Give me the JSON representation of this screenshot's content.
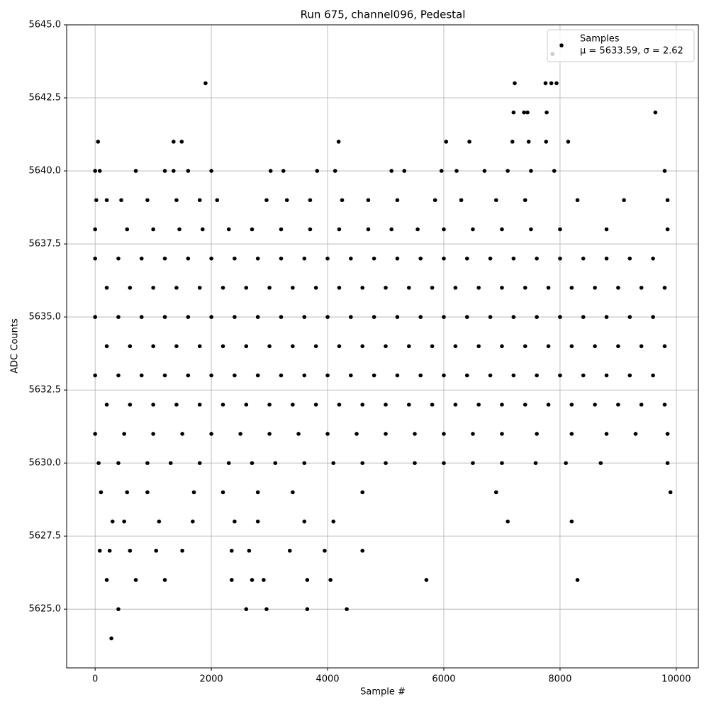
{
  "chart_data": {
    "type": "scatter",
    "title": "Run 675, channel096, Pedestal",
    "x_label": "Sample #",
    "y_label": "ADC Counts",
    "xlim": [
      -490,
      10380
    ],
    "ylim": [
      5622.99,
      5645
    ],
    "xticks": [
      0,
      2000,
      4000,
      6000,
      8000,
      10000
    ],
    "yticks": [
      {
        "value": 5625,
        "label": "5625.0"
      },
      {
        "value": 5627.5,
        "label": "5627.5"
      },
      {
        "value": 5630,
        "label": "5630.0"
      },
      {
        "value": 5632.5,
        "label": "5632.5"
      },
      {
        "value": 5635,
        "label": "5635.0"
      },
      {
        "value": 5637.5,
        "label": "5637.5"
      },
      {
        "value": 5640,
        "label": "5640.0"
      },
      {
        "value": 5642.5,
        "label": "5642.5"
      },
      {
        "value": 5645,
        "label": "5645.0"
      }
    ],
    "grid": true,
    "legend": "upper right",
    "legend_note": "μ = 5633.59, σ = 2.62",
    "x": [
      7870,
      1900,
      7220,
      7750,
      7850,
      7940,
      7200,
      7380,
      7440,
      7770,
      9640,
      50,
      1350,
      1490,
      4190,
      6040,
      6440,
      7180,
      7460,
      7760,
      8140,
      0,
      80,
      700,
      1200,
      1350,
      1600,
      2000,
      3020,
      3240,
      3820,
      4130,
      5100,
      5320,
      5960,
      6220,
      6700,
      7100,
      7500,
      7900,
      9800,
      20,
      200,
      450,
      900,
      1400,
      1800,
      2100,
      2950,
      3300,
      3700,
      4250,
      4700,
      5200,
      5850,
      6300,
      6900,
      7400,
      8300,
      9100,
      9850,
      0,
      550,
      1000,
      1450,
      1850,
      2300,
      2700,
      3200,
      3700,
      4200,
      4700,
      5100,
      5550,
      6000,
      6500,
      7000,
      7500,
      8000,
      8800,
      9850,
      0,
      400,
      800,
      1200,
      1600,
      2000,
      2400,
      2800,
      3200,
      3600,
      4000,
      4400,
      4800,
      5200,
      5600,
      6000,
      6400,
      6800,
      7200,
      7600,
      8000,
      8400,
      8800,
      9200,
      9600,
      200,
      600,
      1000,
      1400,
      1800,
      2200,
      2600,
      3000,
      3400,
      3800,
      4200,
      4600,
      5000,
      5400,
      5800,
      6200,
      6600,
      7000,
      7400,
      7800,
      8200,
      8600,
      9000,
      9400,
      9800,
      0,
      400,
      800,
      1200,
      1600,
      2000,
      2400,
      2800,
      3200,
      3600,
      4000,
      4400,
      4800,
      5200,
      5600,
      6000,
      6400,
      6800,
      7200,
      7600,
      8000,
      8400,
      8800,
      9200,
      9600,
      200,
      600,
      1000,
      1400,
      1800,
      2200,
      2600,
      3000,
      3400,
      3800,
      4200,
      4600,
      5000,
      5400,
      5800,
      6200,
      6600,
      7000,
      7400,
      7800,
      8200,
      8600,
      9000,
      9400,
      9800,
      0,
      400,
      800,
      1200,
      1600,
      2000,
      2400,
      2800,
      3200,
      3600,
      4000,
      4400,
      4800,
      5200,
      5600,
      6000,
      6400,
      6800,
      7200,
      7600,
      8000,
      8400,
      8800,
      9200,
      9600,
      200,
      600,
      1000,
      1400,
      1800,
      2200,
      2600,
      3000,
      3400,
      3800,
      4200,
      4600,
      5000,
      5400,
      5800,
      6200,
      6600,
      7000,
      7400,
      7800,
      8200,
      8600,
      9000,
      9400,
      9800,
      0,
      500,
      1000,
      1500,
      2000,
      2500,
      3000,
      3500,
      4000,
      4500,
      5000,
      5500,
      6000,
      6500,
      7000,
      7600,
      8200,
      8800,
      9300,
      9850,
      60,
      400,
      900,
      1300,
      1800,
      2300,
      2700,
      3100,
      3600,
      4100,
      4600,
      5000,
      5500,
      6000,
      6500,
      7000,
      7580,
      8100,
      8700,
      9850,
      100,
      550,
      900,
      1700,
      2200,
      2800,
      3400,
      4600,
      6900,
      9900,
      300,
      500,
      1100,
      1680,
      2400,
      2800,
      3600,
      4100,
      7100,
      8200,
      80,
      250,
      600,
      1050,
      1500,
      2350,
      2650,
      3350,
      3950,
      4600,
      200,
      700,
      1200,
      2350,
      2700,
      2900,
      3650,
      4050,
      5700,
      8300,
      400,
      2600,
      2950,
      3650,
      4330,
      280
    ],
    "series": [
      {
        "name": "Samples",
        "color": "#000000",
        "values": [
          5644,
          5643,
          5643,
          5643,
          5643,
          5643,
          5642,
          5642,
          5642,
          5642,
          5642,
          5641,
          5641,
          5641,
          5641,
          5641,
          5641,
          5641,
          5641,
          5641,
          5641,
          5640,
          5640,
          5640,
          5640,
          5640,
          5640,
          5640,
          5640,
          5640,
          5640,
          5640,
          5640,
          5640,
          5640,
          5640,
          5640,
          5640,
          5640,
          5640,
          5640,
          5639,
          5639,
          5639,
          5639,
          5639,
          5639,
          5639,
          5639,
          5639,
          5639,
          5639,
          5639,
          5639,
          5639,
          5639,
          5639,
          5639,
          5639,
          5639,
          5639,
          5638,
          5638,
          5638,
          5638,
          5638,
          5638,
          5638,
          5638,
          5638,
          5638,
          5638,
          5638,
          5638,
          5638,
          5638,
          5638,
          5638,
          5638,
          5638,
          5638,
          5637,
          5637,
          5637,
          5637,
          5637,
          5637,
          5637,
          5637,
          5637,
          5637,
          5637,
          5637,
          5637,
          5637,
          5637,
          5637,
          5637,
          5637,
          5637,
          5637,
          5637,
          5637,
          5637,
          5637,
          5637,
          5636,
          5636,
          5636,
          5636,
          5636,
          5636,
          5636,
          5636,
          5636,
          5636,
          5636,
          5636,
          5636,
          5636,
          5636,
          5636,
          5636,
          5636,
          5636,
          5636,
          5636,
          5636,
          5636,
          5636,
          5636,
          5635,
          5635,
          5635,
          5635,
          5635,
          5635,
          5635,
          5635,
          5635,
          5635,
          5635,
          5635,
          5635,
          5635,
          5635,
          5635,
          5635,
          5635,
          5635,
          5635,
          5635,
          5635,
          5635,
          5635,
          5635,
          5634,
          5634,
          5634,
          5634,
          5634,
          5634,
          5634,
          5634,
          5634,
          5634,
          5634,
          5634,
          5634,
          5634,
          5634,
          5634,
          5634,
          5634,
          5634,
          5634,
          5634,
          5634,
          5634,
          5634,
          5634,
          5633,
          5633,
          5633,
          5633,
          5633,
          5633,
          5633,
          5633,
          5633,
          5633,
          5633,
          5633,
          5633,
          5633,
          5633,
          5633,
          5633,
          5633,
          5633,
          5633,
          5633,
          5633,
          5633,
          5633,
          5633,
          5632,
          5632,
          5632,
          5632,
          5632,
          5632,
          5632,
          5632,
          5632,
          5632,
          5632,
          5632,
          5632,
          5632,
          5632,
          5632,
          5632,
          5632,
          5632,
          5632,
          5632,
          5632,
          5632,
          5632,
          5632,
          5631,
          5631,
          5631,
          5631,
          5631,
          5631,
          5631,
          5631,
          5631,
          5631,
          5631,
          5631,
          5631,
          5631,
          5631,
          5631,
          5631,
          5631,
          5631,
          5631,
          5630,
          5630,
          5630,
          5630,
          5630,
          5630,
          5630,
          5630,
          5630,
          5630,
          5630,
          5630,
          5630,
          5630,
          5630,
          5630,
          5630,
          5630,
          5630,
          5630,
          5629,
          5629,
          5629,
          5629,
          5629,
          5629,
          5629,
          5629,
          5629,
          5629,
          5628,
          5628,
          5628,
          5628,
          5628,
          5628,
          5628,
          5628,
          5628,
          5628,
          5627,
          5627,
          5627,
          5627,
          5627,
          5627,
          5627,
          5627,
          5627,
          5627,
          5626,
          5626,
          5626,
          5626,
          5626,
          5626,
          5626,
          5626,
          5626,
          5626,
          5625,
          5625,
          5625,
          5625,
          5625,
          5624
        ]
      }
    ]
  }
}
